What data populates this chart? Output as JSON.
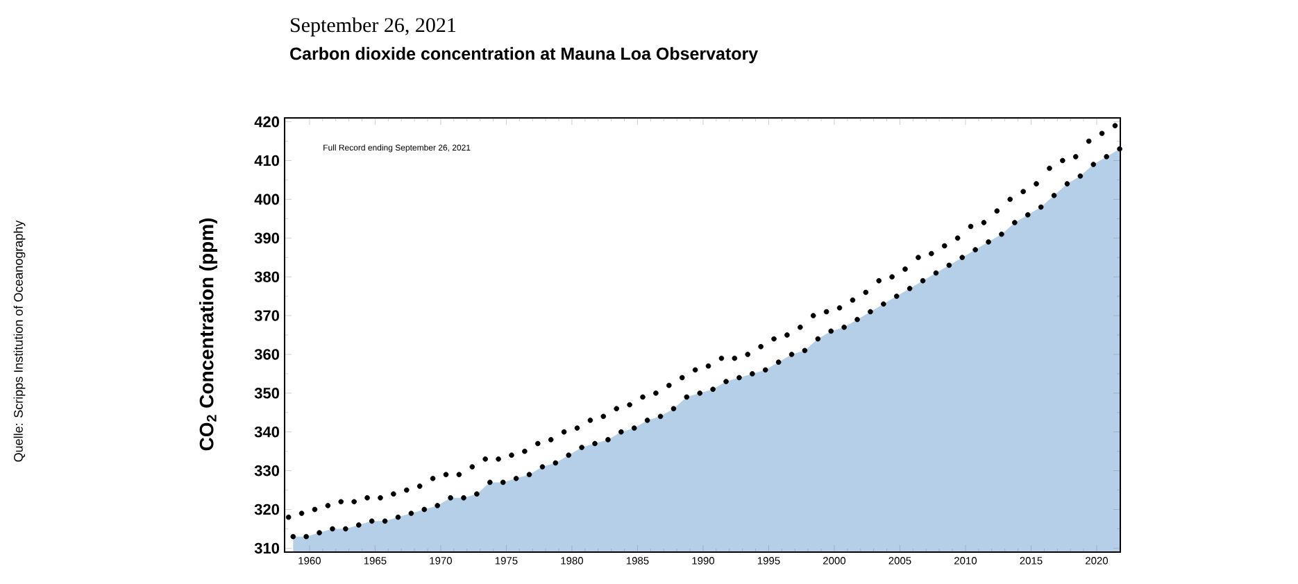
{
  "chart_data": {
    "type": "scatter",
    "subtitle": "September 26, 2021",
    "title": "Carbon dioxide concentration at Mauna Loa Observatory",
    "ylabel": "CO$_{2}$ Concentration (ppm)",
    "annotations": [
      "Full Record ending September 26, 2021",
      "Quelle: Scripps Institution of Oceanography"
    ],
    "xlim": [
      1958.1,
      2021.8
    ],
    "ylim": [
      309,
      421
    ],
    "xticks": [
      1960,
      1965,
      1970,
      1975,
      1980,
      1985,
      1990,
      1995,
      2000,
      2005,
      2010,
      2015,
      2020
    ],
    "yticks": [
      310,
      320,
      330,
      340,
      350,
      360,
      370,
      380,
      390,
      400,
      410,
      420
    ],
    "series": [
      {
        "type": "area",
        "color": "#b5cfe8",
        "x": [
          1958.75,
          1959.75,
          1960.75,
          1961.75,
          1962.75,
          1963.75,
          1964.75,
          1965.75,
          1966.75,
          1967.75,
          1968.75,
          1969.75,
          1970.75,
          1971.75,
          1972.75,
          1973.75,
          1974.75,
          1975.75,
          1976.75,
          1977.75,
          1978.75,
          1979.75,
          1980.75,
          1981.75,
          1982.75,
          1983.75,
          1984.75,
          1985.75,
          1986.75,
          1987.75,
          1988.75,
          1989.75,
          1990.75,
          1991.75,
          1992.75,
          1993.75,
          1994.75,
          1995.75,
          1996.75,
          1997.75,
          1998.75,
          1999.75,
          2000.75,
          2001.75,
          2002.75,
          2003.75,
          2004.75,
          2005.75,
          2006.75,
          2007.75,
          2008.75,
          2009.75,
          2010.75,
          2011.75,
          2012.75,
          2013.75,
          2014.75,
          2015.75,
          2016.75,
          2017.75,
          2018.75,
          2019.75,
          2020.75,
          2021.75
        ],
        "values": [
          313,
          313,
          314,
          315,
          315,
          316,
          317,
          317,
          318,
          319,
          320,
          321,
          323,
          323,
          324,
          327,
          327,
          328,
          329,
          331,
          332,
          334,
          336,
          337,
          338,
          340,
          341,
          343,
          344,
          346,
          349,
          350,
          351,
          353,
          354,
          355,
          356,
          358,
          360,
          361,
          364,
          366,
          367,
          369,
          371,
          373,
          375,
          377,
          379,
          381,
          383,
          385,
          387,
          389,
          391,
          394,
          396,
          398,
          401,
          404,
          406,
          409,
          411,
          413
        ]
      },
      {
        "color": "#000000",
        "marker": "circle",
        "x": [
          1958.4,
          1958.75,
          1959.4,
          1959.75,
          1960.4,
          1960.75,
          1961.4,
          1961.75,
          1962.4,
          1962.75,
          1963.4,
          1963.75,
          1964.4,
          1964.75,
          1965.4,
          1965.75,
          1966.4,
          1966.75,
          1967.4,
          1967.75,
          1968.4,
          1968.75,
          1969.4,
          1969.75,
          1970.4,
          1970.75,
          1971.4,
          1971.75,
          1972.4,
          1972.75,
          1973.4,
          1973.75,
          1974.4,
          1974.75,
          1975.4,
          1975.75,
          1976.4,
          1976.75,
          1977.4,
          1977.75,
          1978.4,
          1978.75,
          1979.4,
          1979.75,
          1980.4,
          1980.75,
          1981.4,
          1981.75,
          1982.4,
          1982.75,
          1983.4,
          1983.75,
          1984.4,
          1984.75,
          1985.4,
          1985.75,
          1986.4,
          1986.75,
          1987.4,
          1987.75,
          1988.4,
          1988.75,
          1989.4,
          1989.75,
          1990.4,
          1990.75,
          1991.4,
          1991.75,
          1992.4,
          1992.75,
          1993.4,
          1993.75,
          1994.4,
          1994.75,
          1995.4,
          1995.75,
          1996.4,
          1996.75,
          1997.4,
          1997.75,
          1998.4,
          1998.75,
          1999.4,
          1999.75,
          2000.4,
          2000.75,
          2001.4,
          2001.75,
          2002.4,
          2002.75,
          2003.4,
          2003.75,
          2004.4,
          2004.75,
          2005.4,
          2005.75,
          2006.4,
          2006.75,
          2007.4,
          2007.75,
          2008.4,
          2008.75,
          2009.4,
          2009.75,
          2010.4,
          2010.75,
          2011.4,
          2011.75,
          2012.4,
          2012.75,
          2013.4,
          2013.75,
          2014.4,
          2014.75,
          2015.4,
          2015.75,
          2016.4,
          2016.75,
          2017.4,
          2017.75,
          2018.4,
          2018.75,
          2019.4,
          2019.75,
          2020.4,
          2020.75,
          2021.4,
          2021.75
        ],
        "values": [
          318,
          313,
          319,
          313,
          320,
          314,
          321,
          315,
          322,
          315,
          322,
          316,
          323,
          317,
          323,
          317,
          324,
          318,
          325,
          319,
          326,
          320,
          328,
          321,
          329,
          323,
          329,
          323,
          331,
          324,
          333,
          327,
          333,
          327,
          334,
          328,
          335,
          329,
          337,
          331,
          338,
          332,
          340,
          334,
          341,
          336,
          343,
          337,
          344,
          338,
          346,
          340,
          347,
          341,
          349,
          343,
          350,
          344,
          352,
          346,
          354,
          349,
          356,
          350,
          357,
          351,
          359,
          353,
          359,
          354,
          360,
          355,
          362,
          356,
          364,
          358,
          365,
          360,
          367,
          361,
          370,
          364,
          371,
          366,
          372,
          367,
          374,
          369,
          376,
          371,
          379,
          373,
          380,
          375,
          382,
          377,
          385,
          379,
          386,
          381,
          388,
          383,
          390,
          385,
          393,
          387,
          394,
          389,
          397,
          391,
          400,
          394,
          402,
          396,
          404,
          398,
          408,
          401,
          410,
          404,
          411,
          406,
          415,
          409,
          417,
          411,
          419,
          413
        ]
      }
    ]
  }
}
